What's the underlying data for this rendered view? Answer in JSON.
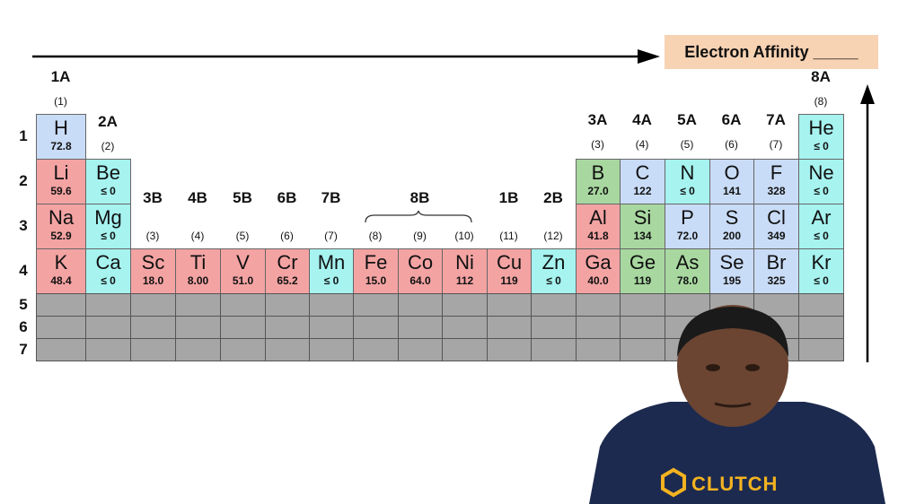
{
  "title": "Electron Affinity _____",
  "colors": {
    "red": "#f4a3a3",
    "cyan": "#a6f3f0",
    "green": "#a8d8a0",
    "blue": "#c9dcf7",
    "gray": "#a6a6a6"
  },
  "groups": [
    {
      "label": "1A",
      "num": "(1)",
      "col": 0
    },
    {
      "label": "2A",
      "num": "(2)",
      "col": 1
    },
    {
      "label": "3B",
      "num": "(3)",
      "col": 2
    },
    {
      "label": "4B",
      "num": "(4)",
      "col": 3
    },
    {
      "label": "5B",
      "num": "(5)",
      "col": 4
    },
    {
      "label": "6B",
      "num": "(6)",
      "col": 5
    },
    {
      "label": "7B",
      "num": "(7)",
      "col": 6
    },
    {
      "label": "",
      "num": "(8)",
      "col": 7
    },
    {
      "label": "8B",
      "num": "(9)",
      "col": 8
    },
    {
      "label": "",
      "num": "(10)",
      "col": 9
    },
    {
      "label": "1B",
      "num": "(11)",
      "col": 10
    },
    {
      "label": "2B",
      "num": "(12)",
      "col": 11
    },
    {
      "label": "3A",
      "num": "(3)",
      "col": 12
    },
    {
      "label": "4A",
      "num": "(4)",
      "col": 13
    },
    {
      "label": "5A",
      "num": "(5)",
      "col": 14
    },
    {
      "label": "6A",
      "num": "(6)",
      "col": 15
    },
    {
      "label": "7A",
      "num": "(7)",
      "col": 16
    },
    {
      "label": "8A",
      "num": "(8)",
      "col": 17
    }
  ],
  "periods": [
    "1",
    "2",
    "3",
    "4",
    "5",
    "6",
    "7"
  ],
  "elements": [
    {
      "s": "H",
      "v": "72.8",
      "r": 1,
      "c": 0,
      "color": "blue"
    },
    {
      "s": "He",
      "v": "≤ 0",
      "r": 1,
      "c": 17,
      "color": "cyan"
    },
    {
      "s": "Li",
      "v": "59.6",
      "r": 2,
      "c": 0,
      "color": "red"
    },
    {
      "s": "Be",
      "v": "≤ 0",
      "r": 2,
      "c": 1,
      "color": "cyan"
    },
    {
      "s": "B",
      "v": "27.0",
      "r": 2,
      "c": 12,
      "color": "green"
    },
    {
      "s": "C",
      "v": "122",
      "r": 2,
      "c": 13,
      "color": "blue"
    },
    {
      "s": "N",
      "v": "≤ 0",
      "r": 2,
      "c": 14,
      "color": "cyan"
    },
    {
      "s": "O",
      "v": "141",
      "r": 2,
      "c": 15,
      "color": "blue"
    },
    {
      "s": "F",
      "v": "328",
      "r": 2,
      "c": 16,
      "color": "blue"
    },
    {
      "s": "Ne",
      "v": "≤ 0",
      "r": 2,
      "c": 17,
      "color": "cyan"
    },
    {
      "s": "Na",
      "v": "52.9",
      "r": 3,
      "c": 0,
      "color": "red"
    },
    {
      "s": "Mg",
      "v": "≤ 0",
      "r": 3,
      "c": 1,
      "color": "cyan"
    },
    {
      "s": "Al",
      "v": "41.8",
      "r": 3,
      "c": 12,
      "color": "red"
    },
    {
      "s": "Si",
      "v": "134",
      "r": 3,
      "c": 13,
      "color": "green"
    },
    {
      "s": "P",
      "v": "72.0",
      "r": 3,
      "c": 14,
      "color": "blue"
    },
    {
      "s": "S",
      "v": "200",
      "r": 3,
      "c": 15,
      "color": "blue"
    },
    {
      "s": "Cl",
      "v": "349",
      "r": 3,
      "c": 16,
      "color": "blue"
    },
    {
      "s": "Ar",
      "v": "≤ 0",
      "r": 3,
      "c": 17,
      "color": "cyan"
    },
    {
      "s": "K",
      "v": "48.4",
      "r": 4,
      "c": 0,
      "color": "red"
    },
    {
      "s": "Ca",
      "v": "≤ 0",
      "r": 4,
      "c": 1,
      "color": "cyan"
    },
    {
      "s": "Sc",
      "v": "18.0",
      "r": 4,
      "c": 2,
      "color": "red"
    },
    {
      "s": "Ti",
      "v": "8.00",
      "r": 4,
      "c": 3,
      "color": "red"
    },
    {
      "s": "V",
      "v": "51.0",
      "r": 4,
      "c": 4,
      "color": "red"
    },
    {
      "s": "Cr",
      "v": "65.2",
      "r": 4,
      "c": 5,
      "color": "red"
    },
    {
      "s": "Mn",
      "v": "≤ 0",
      "r": 4,
      "c": 6,
      "color": "cyan"
    },
    {
      "s": "Fe",
      "v": "15.0",
      "r": 4,
      "c": 7,
      "color": "red"
    },
    {
      "s": "Co",
      "v": "64.0",
      "r": 4,
      "c": 8,
      "color": "red"
    },
    {
      "s": "Ni",
      "v": "112",
      "r": 4,
      "c": 9,
      "color": "red"
    },
    {
      "s": "Cu",
      "v": "119",
      "r": 4,
      "c": 10,
      "color": "red"
    },
    {
      "s": "Zn",
      "v": "≤ 0",
      "r": 4,
      "c": 11,
      "color": "cyan"
    },
    {
      "s": "Ga",
      "v": "40.0",
      "r": 4,
      "c": 12,
      "color": "red"
    },
    {
      "s": "Ge",
      "v": "119",
      "r": 4,
      "c": 13,
      "color": "green"
    },
    {
      "s": "As",
      "v": "78.0",
      "r": 4,
      "c": 14,
      "color": "green"
    },
    {
      "s": "Se",
      "v": "195",
      "r": 4,
      "c": 15,
      "color": "blue"
    },
    {
      "s": "Br",
      "v": "325",
      "r": 4,
      "c": 16,
      "color": "blue"
    },
    {
      "s": "Kr",
      "v": "≤ 0",
      "r": 4,
      "c": 17,
      "color": "cyan"
    }
  ],
  "logo": "CLUTCH"
}
